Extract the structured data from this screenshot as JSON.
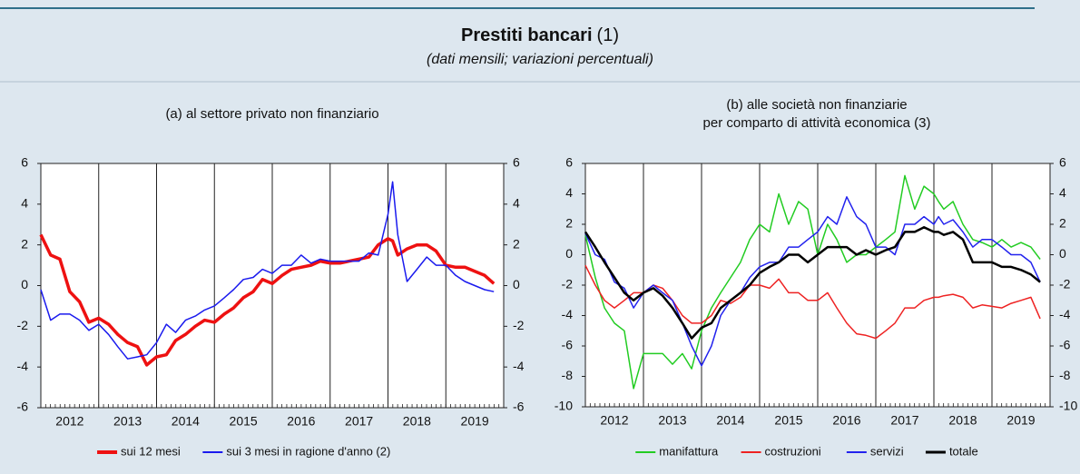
{
  "title": "Prestiti bancari",
  "title_note": "(1)",
  "subtitle": "(dati mensili; variazioni percentuali)",
  "chart_data": [
    {
      "type": "line",
      "title_lines": [
        "(a) al settore privato non finanziario"
      ],
      "x": [
        2012,
        2012.17,
        2012.33,
        2012.5,
        2012.67,
        2012.83,
        2013,
        2013.17,
        2013.33,
        2013.5,
        2013.67,
        2013.83,
        2014,
        2014.17,
        2014.33,
        2014.5,
        2014.67,
        2014.83,
        2015,
        2015.17,
        2015.33,
        2015.5,
        2015.67,
        2015.83,
        2016,
        2016.17,
        2016.33,
        2016.5,
        2016.67,
        2016.83,
        2017,
        2017.17,
        2017.33,
        2017.5,
        2017.67,
        2017.83,
        2018,
        2018.08,
        2018.17,
        2018.33,
        2018.5,
        2018.67,
        2018.83,
        2019,
        2019.17,
        2019.33,
        2019.5,
        2019.67,
        2019.83
      ],
      "xlim": [
        2012,
        2020
      ],
      "xticks": [
        {
          "value": 2012.5,
          "label": "2012"
        },
        {
          "value": 2013.5,
          "label": "2013"
        },
        {
          "value": 2014.5,
          "label": "2014"
        },
        {
          "value": 2015.5,
          "label": "2015"
        },
        {
          "value": 2016.5,
          "label": "2016"
        },
        {
          "value": 2017.5,
          "label": "2017"
        },
        {
          "value": 2018.5,
          "label": "2018"
        },
        {
          "value": 2019.5,
          "label": "2019"
        }
      ],
      "xgrid": [
        2013,
        2014,
        2015,
        2016,
        2017,
        2018,
        2019
      ],
      "ylim": [
        -6,
        6
      ],
      "yticks": [
        -6,
        -4,
        -2,
        0,
        2,
        4,
        6
      ],
      "series": [
        {
          "name": "sui 12 mesi",
          "color": "#ee1111",
          "width": 3.5,
          "values": [
            2.5,
            1.5,
            1.3,
            -0.3,
            -0.8,
            -1.8,
            -1.6,
            -1.9,
            -2.4,
            -2.8,
            -3.0,
            -3.9,
            -3.5,
            -3.4,
            -2.7,
            -2.4,
            -2.0,
            -1.7,
            -1.8,
            -1.4,
            -1.1,
            -0.6,
            -0.3,
            0.3,
            0.1,
            0.5,
            0.8,
            0.9,
            1.0,
            1.2,
            1.1,
            1.1,
            1.2,
            1.3,
            1.4,
            2.0,
            2.3,
            2.2,
            1.5,
            1.8,
            2.0,
            2.0,
            1.7,
            1.0,
            0.9,
            0.9,
            0.7,
            0.5,
            0.1
          ]
        },
        {
          "name": "sui 3 mesi in ragione d'anno (2)",
          "color": "#1a1aee",
          "width": 1.5,
          "values": [
            -0.2,
            -1.7,
            -1.4,
            -1.4,
            -1.7,
            -2.2,
            -1.9,
            -2.4,
            -3.0,
            -3.6,
            -3.5,
            -3.4,
            -2.8,
            -1.9,
            -2.3,
            -1.7,
            -1.5,
            -1.2,
            -1.0,
            -0.6,
            -0.2,
            0.3,
            0.4,
            0.8,
            0.6,
            1.0,
            1.0,
            1.5,
            1.1,
            1.3,
            1.2,
            1.2,
            1.2,
            1.2,
            1.6,
            1.5,
            3.5,
            5.1,
            2.5,
            0.2,
            0.8,
            1.4,
            1.0,
            1.0,
            0.5,
            0.2,
            0.0,
            -0.2,
            -0.3
          ]
        }
      ]
    },
    {
      "type": "line",
      "title_lines": [
        "(b) alle società non finanziarie",
        "per comparto di attività economica (3)"
      ],
      "x": [
        2012,
        2012.17,
        2012.33,
        2012.5,
        2012.67,
        2012.83,
        2013,
        2013.17,
        2013.33,
        2013.5,
        2013.67,
        2013.83,
        2014,
        2014.17,
        2014.33,
        2014.5,
        2014.67,
        2014.83,
        2015,
        2015.17,
        2015.33,
        2015.5,
        2015.67,
        2015.83,
        2016,
        2016.17,
        2016.33,
        2016.5,
        2016.67,
        2016.83,
        2017,
        2017.17,
        2017.33,
        2017.5,
        2017.67,
        2017.83,
        2018,
        2018.08,
        2018.17,
        2018.33,
        2018.5,
        2018.67,
        2018.83,
        2019,
        2019.17,
        2019.33,
        2019.5,
        2019.67,
        2019.83
      ],
      "xlim": [
        2012,
        2020
      ],
      "xticks": [
        {
          "value": 2012.5,
          "label": "2012"
        },
        {
          "value": 2013.5,
          "label": "2013"
        },
        {
          "value": 2014.5,
          "label": "2014"
        },
        {
          "value": 2015.5,
          "label": "2015"
        },
        {
          "value": 2016.5,
          "label": "2016"
        },
        {
          "value": 2017.5,
          "label": "2017"
        },
        {
          "value": 2018.5,
          "label": "2018"
        },
        {
          "value": 2019.5,
          "label": "2019"
        }
      ],
      "xgrid": [
        2013,
        2014,
        2015,
        2016,
        2017,
        2018,
        2019
      ],
      "ylim": [
        -10,
        6
      ],
      "yticks": [
        -10,
        -8,
        -6,
        -4,
        -2,
        0,
        2,
        4,
        6
      ],
      "series": [
        {
          "name": "manifattura",
          "color": "#22cc22",
          "width": 1.5,
          "values": [
            1.3,
            -1.5,
            -3.5,
            -4.5,
            -5.0,
            -8.8,
            -6.5,
            -6.5,
            -6.5,
            -7.2,
            -6.5,
            -7.5,
            -5.0,
            -3.5,
            -2.5,
            -1.5,
            -0.5,
            1.0,
            2.0,
            1.5,
            4.0,
            2.0,
            3.5,
            3.0,
            0.0,
            2.0,
            1.0,
            -0.5,
            0.0,
            0.0,
            0.5,
            1.0,
            1.5,
            5.2,
            3.0,
            4.5,
            4.0,
            3.5,
            3.0,
            3.5,
            2.0,
            1.0,
            0.8,
            0.5,
            1.0,
            0.5,
            0.8,
            0.5,
            -0.3
          ]
        },
        {
          "name": "costruzioni",
          "color": "#ee2222",
          "width": 1.5,
          "values": [
            -0.7,
            -2.0,
            -3.0,
            -3.5,
            -3.0,
            -2.5,
            -2.5,
            -2.0,
            -2.2,
            -3.0,
            -4.0,
            -4.5,
            -4.5,
            -4.0,
            -3.0,
            -3.2,
            -2.8,
            -2.0,
            -2.0,
            -2.2,
            -1.6,
            -2.5,
            -2.5,
            -3.0,
            -3.0,
            -2.5,
            -3.5,
            -4.5,
            -5.2,
            -5.3,
            -5.5,
            -5.0,
            -4.5,
            -3.5,
            -3.5,
            -3.0,
            -2.8,
            -2.8,
            -2.7,
            -2.6,
            -2.8,
            -3.5,
            -3.3,
            -3.4,
            -3.5,
            -3.2,
            -3.0,
            -2.8,
            -4.2
          ]
        },
        {
          "name": "servizi",
          "color": "#2222ee",
          "width": 1.5,
          "values": [
            1.4,
            0.0,
            -0.3,
            -1.8,
            -2.2,
            -3.5,
            -2.5,
            -2.0,
            -2.5,
            -3.0,
            -4.5,
            -6.0,
            -7.3,
            -6.0,
            -4.0,
            -3.0,
            -2.5,
            -1.5,
            -0.8,
            -0.5,
            -0.5,
            0.5,
            0.5,
            1.0,
            1.5,
            2.5,
            2.0,
            3.8,
            2.5,
            2.0,
            0.5,
            0.5,
            0.0,
            2.0,
            2.0,
            2.5,
            2.0,
            2.5,
            2.0,
            2.3,
            1.5,
            0.5,
            1.0,
            1.0,
            0.5,
            0.0,
            0.0,
            -0.5,
            -1.8
          ]
        },
        {
          "name": "totale",
          "color": "#000000",
          "width": 2.5,
          "values": [
            1.5,
            0.5,
            -0.5,
            -1.5,
            -2.5,
            -3.0,
            -2.5,
            -2.2,
            -2.7,
            -3.5,
            -4.5,
            -5.5,
            -4.8,
            -4.5,
            -3.5,
            -3.0,
            -2.5,
            -2.0,
            -1.2,
            -0.8,
            -0.5,
            0.0,
            0.0,
            -0.5,
            0.0,
            0.5,
            0.5,
            0.5,
            0.0,
            0.3,
            0.0,
            0.3,
            0.5,
            1.5,
            1.5,
            1.8,
            1.5,
            1.5,
            1.3,
            1.5,
            1.0,
            -0.5,
            -0.5,
            -0.5,
            -0.8,
            -0.8,
            -1.0,
            -1.3,
            -1.8
          ]
        }
      ]
    }
  ]
}
